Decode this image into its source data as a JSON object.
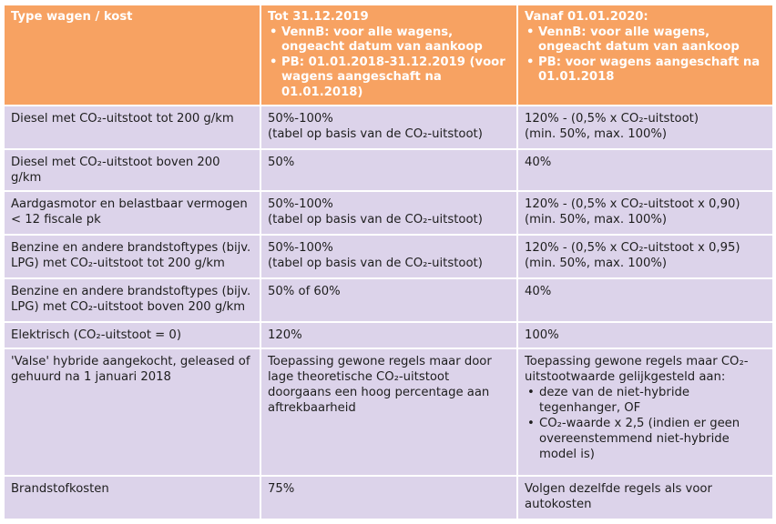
{
  "header": {
    "col1": "Type wagen / kost",
    "col2": {
      "title": "Tot 31.12.2019",
      "bullets": [
        "VennB: voor alle wagens, ongeacht datum van aankoop",
        "PB: 01.01.2018-31.12.2019 (voor wagens aangeschaft na 01.01.2018)"
      ]
    },
    "col3": {
      "title": "Vanaf 01.01.2020:",
      "bullets": [
        "VennB: voor alle wagens, ongeacht datum van aankoop",
        "PB: voor wagens aangeschaft na 01.01.2018"
      ]
    }
  },
  "rows": [
    {
      "type": "Diesel met CO₂-uitstoot tot 200 g/km",
      "before": [
        "50%-100%",
        "(tabel op basis van de CO₂-uitstoot)"
      ],
      "after": [
        "120% - (0,5% x CO₂-uitstoot)",
        "(min. 50%, max. 100%)"
      ]
    },
    {
      "type": "Diesel met CO₂-uitstoot boven 200 g/km",
      "before": [
        "50%"
      ],
      "after": [
        "40%"
      ]
    },
    {
      "type": "Aardgasmotor en belastbaar vermogen < 12 fiscale pk",
      "before": [
        "50%-100%",
        "(tabel op basis van de CO₂-uitstoot)"
      ],
      "after": [
        "120% - (0,5% x CO₂-uitstoot x 0,90)",
        "(min. 50%, max. 100%)"
      ]
    },
    {
      "type": "Benzine en andere brandstoftypes (bijv. LPG) met CO₂-uitstoot tot 200 g/km",
      "before": [
        "50%-100%",
        "(tabel op basis van de CO₂-uitstoot)"
      ],
      "after": [
        "120% - (0,5% x CO₂-uitstoot x 0,95)",
        "(min. 50%, max. 100%)"
      ]
    },
    {
      "type": "Benzine en andere brandstoftypes (bijv. LPG) met CO₂-uitstoot boven 200 g/km",
      "before": [
        "50% of 60%"
      ],
      "after": [
        "40%"
      ]
    },
    {
      "type": "Elektrisch (CO₂-uitstoot = 0)",
      "before": [
        "120%"
      ],
      "after": [
        "100%"
      ]
    },
    {
      "type": "'Valse' hybride aangekocht, geleased of gehuurd na 1 januari 2018",
      "before_text": "Toepassing gewone regels maar door lage theoretische CO₂-uitstoot doorgaans een hoog percentage aan aftrekbaarheid",
      "after_intro": "Toepassing gewone regels maar CO₂-uitstootwaarde gelijkgesteld aan:",
      "after_bullets": [
        "deze van de niet-hybride tegenhanger, OF",
        "CO₂-waarde x 2,5 (indien er geen overeenstemmend niet-hybride model is)"
      ]
    },
    {
      "type": "Brandstofkosten",
      "before": [
        "75%"
      ],
      "after_text": "Volgen dezelfde regels als voor autokosten"
    }
  ]
}
